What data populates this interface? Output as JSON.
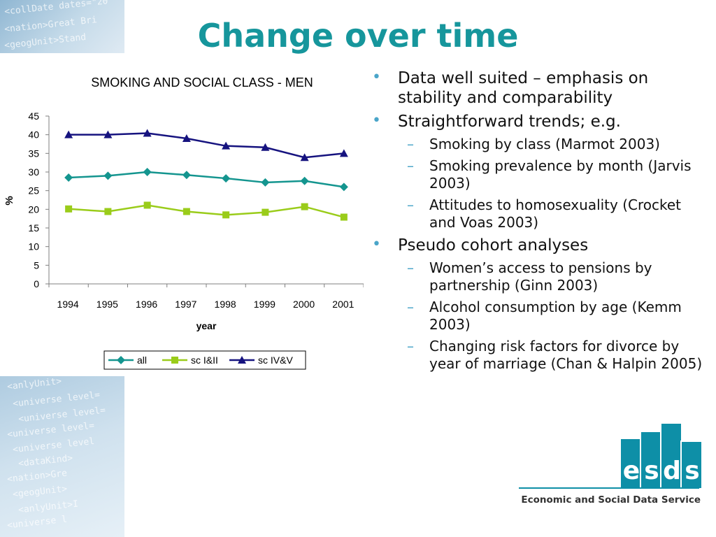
{
  "slide": {
    "title": "Change over time",
    "decor_text": [
      "<collDate dates=\"20",
      "<nation>Great Bri",
      "<geogUnit>Stand",
      "<anlyUnit>",
      "<universe level=",
      "<universe level=",
      "<universe level=",
      "<universe level",
      "<dataKind>",
      "<nation>Gre",
      "<geogUnit>",
      "<anlyUnit>I",
      "<universe l"
    ]
  },
  "chart_data": {
    "type": "line",
    "title": "SMOKING AND SOCIAL CLASS - MEN",
    "xlabel": "year",
    "ylabel": "%",
    "categories": [
      "1994",
      "1995",
      "1996",
      "1997",
      "1998",
      "1999",
      "2000",
      "2001"
    ],
    "ylim": [
      0,
      45
    ],
    "yticks": [
      0,
      5,
      10,
      15,
      20,
      25,
      30,
      35,
      40,
      45
    ],
    "grid": false,
    "legend_position": "bottom",
    "series": [
      {
        "name": "all",
        "color": "#14958f",
        "marker": "diamond",
        "values": [
          28.5,
          29,
          30,
          29.2,
          28.3,
          27.2,
          27.6,
          26
        ]
      },
      {
        "name": "sc I&II",
        "color": "#9acc1a",
        "marker": "square",
        "values": [
          20.1,
          19.4,
          21.1,
          19.4,
          18.5,
          19.2,
          20.7,
          17.9
        ]
      },
      {
        "name": "sc IV&V",
        "color": "#16137f",
        "marker": "triangle",
        "values": [
          40,
          40,
          40.4,
          39,
          37,
          36.6,
          33.9,
          35
        ]
      }
    ]
  },
  "bullets": [
    {
      "level": 1,
      "text": "Data well suited – emphasis on stability and comparability"
    },
    {
      "level": 1,
      "text": "Straightforward trends; e.g."
    },
    {
      "level": 2,
      "text": "Smoking by class (Marmot 2003)"
    },
    {
      "level": 2,
      "text": "Smoking prevalence by month (Jarvis 2003)"
    },
    {
      "level": 2,
      "text": "Attitudes to homosexuality (Crocket and Voas 2003)"
    },
    {
      "level": 1,
      "text": "Pseudo cohort analyses"
    },
    {
      "level": 2,
      "text": "Women’s access to pensions by partnership (Ginn 2003)"
    },
    {
      "level": 2,
      "text": "Alcohol consumption by age (Kemm 2003)"
    },
    {
      "level": 2,
      "text": "Changing risk factors for divorce by year of marriage (Chan & Halpin 2005)"
    }
  ],
  "logo": {
    "letters": [
      "e",
      "s",
      "d",
      "s"
    ],
    "name": "Economic and Social Data Service",
    "color": "#0e8fa7"
  }
}
